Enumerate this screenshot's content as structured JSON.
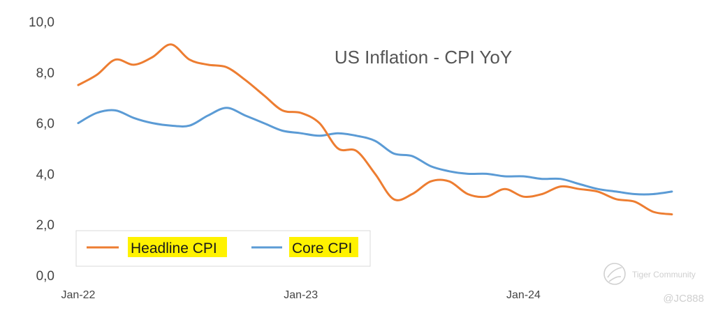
{
  "chart_data": {
    "type": "line",
    "title": "US Inflation - CPI YoY",
    "x": [
      "Jan-22",
      "Feb-22",
      "Mar-22",
      "Apr-22",
      "May-22",
      "Jun-22",
      "Jul-22",
      "Aug-22",
      "Sep-22",
      "Oct-22",
      "Nov-22",
      "Dec-22",
      "Jan-23",
      "Feb-23",
      "Mar-23",
      "Apr-23",
      "May-23",
      "Jun-23",
      "Jul-23",
      "Aug-23",
      "Sep-23",
      "Oct-23",
      "Nov-23",
      "Dec-23",
      "Jan-24",
      "Feb-24",
      "Mar-24",
      "Apr-24",
      "May-24",
      "Jun-24",
      "Jul-24",
      "Aug-24",
      "Sep-24"
    ],
    "x_tick_labels": [
      "Jan-22",
      "Jan-23",
      "Jan-24"
    ],
    "y_tick_labels": [
      "0,0",
      "2,0",
      "4,0",
      "6,0",
      "8,0",
      "10,0"
    ],
    "ylim": [
      0,
      10
    ],
    "series": [
      {
        "name": "Headline CPI",
        "color": "#ED7D31",
        "values": [
          7.5,
          7.9,
          8.5,
          8.3,
          8.6,
          9.1,
          8.5,
          8.3,
          8.2,
          7.7,
          7.1,
          6.5,
          6.4,
          6.0,
          5.0,
          4.9,
          4.0,
          3.0,
          3.2,
          3.7,
          3.7,
          3.2,
          3.1,
          3.4,
          3.1,
          3.2,
          3.5,
          3.4,
          3.3,
          3.0,
          2.9,
          2.5,
          2.4
        ]
      },
      {
        "name": "Core CPI",
        "color": "#5B9BD5",
        "values": [
          6.0,
          6.4,
          6.5,
          6.2,
          6.0,
          5.9,
          5.9,
          6.3,
          6.6,
          6.3,
          6.0,
          5.7,
          5.6,
          5.5,
          5.6,
          5.5,
          5.3,
          4.8,
          4.7,
          4.3,
          4.1,
          4.0,
          4.0,
          3.9,
          3.9,
          3.8,
          3.8,
          3.6,
          3.4,
          3.3,
          3.2,
          3.2,
          3.3
        ]
      }
    ],
    "grid": false,
    "legend_position": "bottom-left"
  },
  "watermark": {
    "brand": "Tiger Community",
    "handle": "@JC888"
  }
}
